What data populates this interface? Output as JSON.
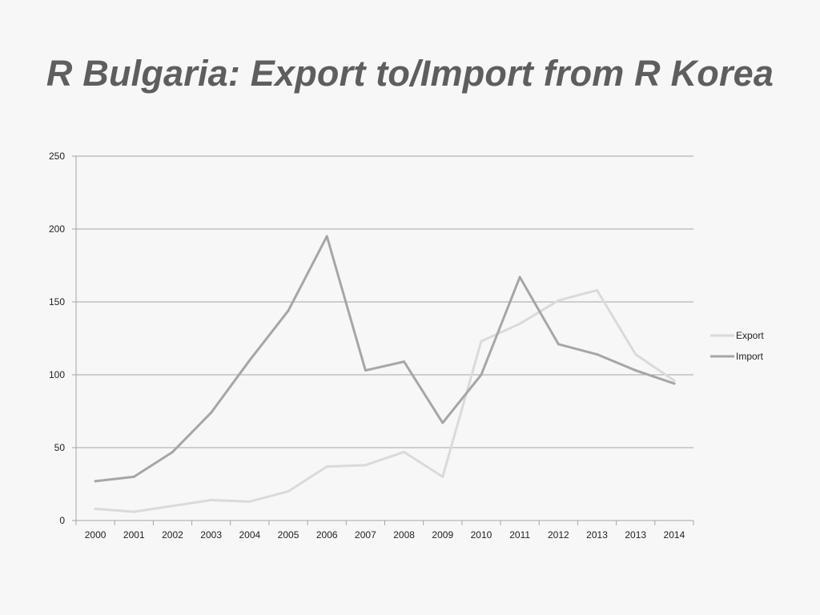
{
  "slide": {
    "title": "R Bulgaria: Export to/Import from R Korea"
  },
  "chart_data": {
    "type": "line",
    "title": "",
    "xlabel": "",
    "ylabel": "",
    "categories": [
      "2000",
      "2001",
      "2002",
      "2003",
      "2004",
      "2005",
      "2006",
      "2007",
      "2008",
      "2009",
      "2010",
      "2011",
      "2012",
      "2013",
      "2013",
      "2014"
    ],
    "ylim": [
      0,
      250
    ],
    "yticks": [
      0,
      50,
      100,
      150,
      200,
      250
    ],
    "grid": true,
    "legend_position": "right",
    "series": [
      {
        "name": "Export",
        "color": "#dadada",
        "values": [
          8,
          6,
          10,
          14,
          13,
          20,
          37,
          38,
          47,
          30,
          123,
          135,
          151,
          158,
          114,
          96
        ]
      },
      {
        "name": "Import",
        "color": "#a6a6a6",
        "values": [
          27,
          30,
          47,
          74,
          110,
          144,
          195,
          103,
          109,
          67,
          100,
          167,
          121,
          114,
          103,
          94
        ]
      }
    ]
  }
}
